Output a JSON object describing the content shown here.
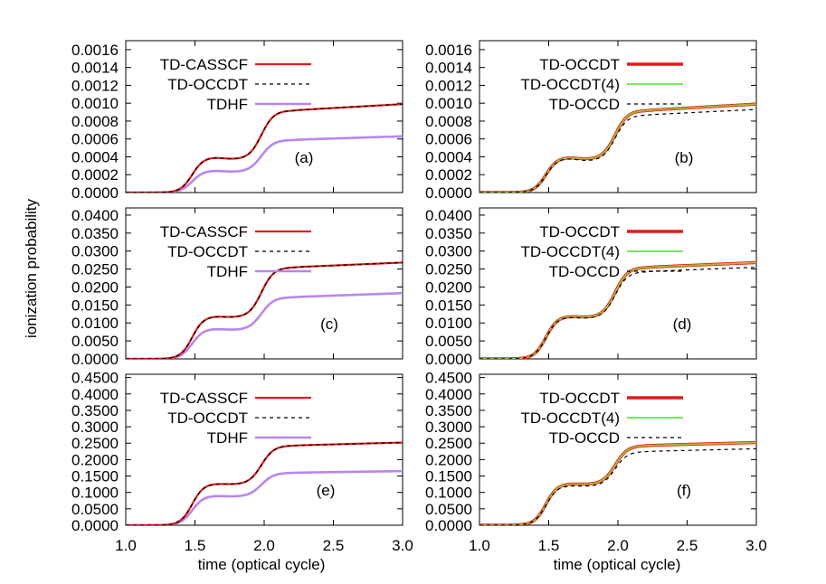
{
  "figure": {
    "ylabel": "ionization probability",
    "xlabel": "time (optical cycle)",
    "x_ticks": [
      "1.0",
      "1.5",
      "2.0",
      "2.5",
      "3.0"
    ]
  },
  "colors": {
    "td_casscf": "#e41a1c",
    "td_occdt": "#000000",
    "tdhf": "#b886ee",
    "td_occdt_right": "#e41a1c",
    "td_occdt4": "#66e34a",
    "td_occd": "#000000",
    "overlay_right": "#d4a32a"
  },
  "chart_data": [
    {
      "type": "line",
      "panel": "(a)",
      "xlim": [
        1.0,
        3.0
      ],
      "ylim": [
        0,
        0.0017
      ],
      "y_ticks": [
        "0.0000",
        "0.0002",
        "0.0004",
        "0.0006",
        "0.0008",
        "0.0010",
        "0.0012",
        "0.0014",
        "0.0016"
      ],
      "series": [
        {
          "name": "TD-CASSCF",
          "style": "solid-red",
          "y_plateau1": 0.0004,
          "y_dip": 0.00037,
          "y_plateau2": 0.00092,
          "y_end": 0.00099
        },
        {
          "name": "TD-OCCDT",
          "style": "dashed-black",
          "y_plateau1": 0.0004,
          "y_dip": 0.00037,
          "y_plateau2": 0.00092,
          "y_end": 0.00099
        },
        {
          "name": "TDHF",
          "style": "solid-purple",
          "y_plateau1": 0.00025,
          "y_dip": 0.00023,
          "y_plateau2": 0.00059,
          "y_end": 0.00063
        }
      ]
    },
    {
      "type": "line",
      "panel": "(b)",
      "xlim": [
        1.0,
        3.0
      ],
      "ylim": [
        0,
        0.0017
      ],
      "y_ticks": [
        "0.0000",
        "0.0002",
        "0.0004",
        "0.0006",
        "0.0008",
        "0.0010",
        "0.0012",
        "0.0014",
        "0.0016"
      ],
      "series": [
        {
          "name": "TD-OCCDT",
          "style": "thick-red",
          "y_plateau1": 0.0004,
          "y_dip": 0.00037,
          "y_plateau2": 0.00092,
          "y_end": 0.00099
        },
        {
          "name": "TD-OCCDT(4)",
          "style": "solid-green",
          "y_plateau1": 0.0004,
          "y_dip": 0.00037,
          "y_plateau2": 0.00092,
          "y_end": 0.00099
        },
        {
          "name": "TD-OCCD",
          "style": "dashed-black",
          "y_plateau1": 0.00039,
          "y_dip": 0.00035,
          "y_plateau2": 0.00087,
          "y_end": 0.00093
        }
      ]
    },
    {
      "type": "line",
      "panel": "(c)",
      "xlim": [
        1.0,
        3.0
      ],
      "ylim": [
        0,
        0.042
      ],
      "y_ticks": [
        "0.0000",
        "0.0050",
        "0.0100",
        "0.0150",
        "0.0200",
        "0.0250",
        "0.0300",
        "0.0350",
        "0.0400"
      ],
      "series": [
        {
          "name": "TD-CASSCF",
          "style": "solid-red",
          "y_plateau1": 0.012,
          "y_dip": 0.0115,
          "y_plateau2": 0.0255,
          "y_end": 0.0268
        },
        {
          "name": "TD-OCCDT",
          "style": "dashed-black",
          "y_plateau1": 0.012,
          "y_dip": 0.0115,
          "y_plateau2": 0.0255,
          "y_end": 0.0268
        },
        {
          "name": "TDHF",
          "style": "solid-purple",
          "y_plateau1": 0.0085,
          "y_dip": 0.008,
          "y_plateau2": 0.0172,
          "y_end": 0.0183
        }
      ]
    },
    {
      "type": "line",
      "panel": "(d)",
      "xlim": [
        1.0,
        3.0
      ],
      "ylim": [
        0,
        0.042
      ],
      "y_ticks": [
        "0.0000",
        "0.0050",
        "0.0100",
        "0.0150",
        "0.0200",
        "0.0250",
        "0.0300",
        "0.0350",
        "0.0400"
      ],
      "series": [
        {
          "name": "TD-OCCDT",
          "style": "thick-red",
          "y_plateau1": 0.012,
          "y_dip": 0.0115,
          "y_plateau2": 0.0255,
          "y_end": 0.0268
        },
        {
          "name": "TD-OCCDT(4)",
          "style": "solid-green",
          "y_plateau1": 0.012,
          "y_dip": 0.0115,
          "y_plateau2": 0.0255,
          "y_end": 0.0268
        },
        {
          "name": "TD-OCCD",
          "style": "dashed-black",
          "y_plateau1": 0.0118,
          "y_dip": 0.0112,
          "y_plateau2": 0.0243,
          "y_end": 0.0255
        }
      ]
    },
    {
      "type": "line",
      "panel": "(e)",
      "xlim": [
        1.0,
        3.0
      ],
      "ylim": [
        0,
        0.46
      ],
      "y_ticks": [
        "0.0000",
        "0.0500",
        "0.1000",
        "0.1500",
        "0.2000",
        "0.2500",
        "0.3000",
        "0.3500",
        "0.4000",
        "0.4500"
      ],
      "series": [
        {
          "name": "TD-CASSCF",
          "style": "solid-red",
          "y_plateau1": 0.128,
          "y_dip": 0.124,
          "y_plateau2": 0.243,
          "y_end": 0.252
        },
        {
          "name": "TD-OCCDT",
          "style": "dashed-black",
          "y_plateau1": 0.128,
          "y_dip": 0.124,
          "y_plateau2": 0.243,
          "y_end": 0.252
        },
        {
          "name": "TDHF",
          "style": "solid-purple",
          "y_plateau1": 0.091,
          "y_dip": 0.087,
          "y_plateau2": 0.16,
          "y_end": 0.165
        }
      ]
    },
    {
      "type": "line",
      "panel": "(f)",
      "xlim": [
        1.0,
        3.0
      ],
      "ylim": [
        0,
        0.46
      ],
      "y_ticks": [
        "0.0000",
        "0.0500",
        "0.1000",
        "0.1500",
        "0.2000",
        "0.2500",
        "0.3000",
        "0.3500",
        "0.4000",
        "0.4500"
      ],
      "series": [
        {
          "name": "TD-OCCDT",
          "style": "thick-red",
          "y_plateau1": 0.128,
          "y_dip": 0.124,
          "y_plateau2": 0.243,
          "y_end": 0.252
        },
        {
          "name": "TD-OCCDT(4)",
          "style": "solid-green",
          "y_plateau1": 0.128,
          "y_dip": 0.124,
          "y_plateau2": 0.243,
          "y_end": 0.252
        },
        {
          "name": "TD-OCCD",
          "style": "dashed-black",
          "y_plateau1": 0.122,
          "y_dip": 0.118,
          "y_plateau2": 0.225,
          "y_end": 0.233
        }
      ]
    }
  ]
}
